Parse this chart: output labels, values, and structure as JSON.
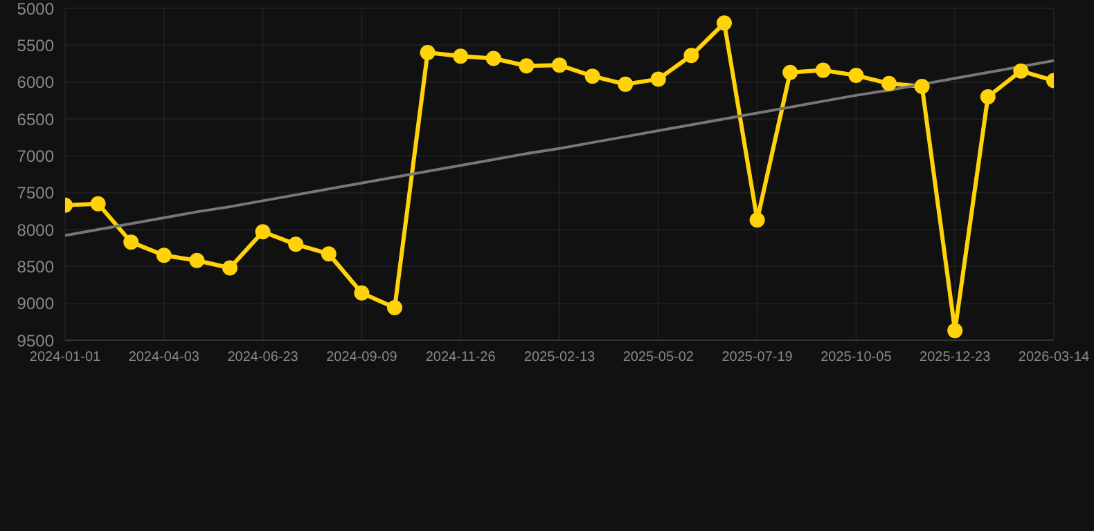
{
  "chart_data": {
    "type": "line",
    "categories": [
      "2024-01-01",
      null,
      null,
      "2024-04-03",
      null,
      null,
      "2024-06-23",
      null,
      null,
      "2024-09-09",
      null,
      null,
      "2024-11-26",
      null,
      null,
      "2025-02-13",
      null,
      null,
      "2025-05-02",
      null,
      null,
      "2025-07-19",
      null,
      null,
      "2025-10-05",
      null,
      null,
      "2025-12-23",
      null,
      null,
      "2026-03-14"
    ],
    "series": [
      {
        "color": "#ffd20a",
        "marker": "circle",
        "values": [
          7670,
          7650,
          8170,
          8350,
          8420,
          8520,
          8030,
          8200,
          8330,
          8860,
          9060,
          5600,
          5650,
          5680,
          5780,
          5770,
          5920,
          6030,
          5960,
          5640,
          5200,
          7870,
          5870,
          5840,
          5910,
          6020,
          6060,
          9370,
          6200,
          5850,
          5980
        ]
      },
      {
        "type": "line",
        "color": "#777777",
        "marker": "none",
        "values": [
          8080,
          8000,
          7920,
          7840,
          7760,
          7690,
          7610,
          7530,
          7450,
          7370,
          7290,
          7210,
          7130,
          7050,
          6970,
          6900,
          6820,
          6740,
          6660,
          6580,
          6500,
          6420,
          6340,
          6260,
          6180,
          6110,
          6030,
          5950,
          5870,
          5790,
          5710
        ]
      }
    ],
    "ylim": [
      9500,
      5000
    ],
    "yticks": [
      5000,
      5500,
      6000,
      6500,
      7000,
      7500,
      8000,
      8500,
      9000,
      9500
    ],
    "grid": true
  }
}
